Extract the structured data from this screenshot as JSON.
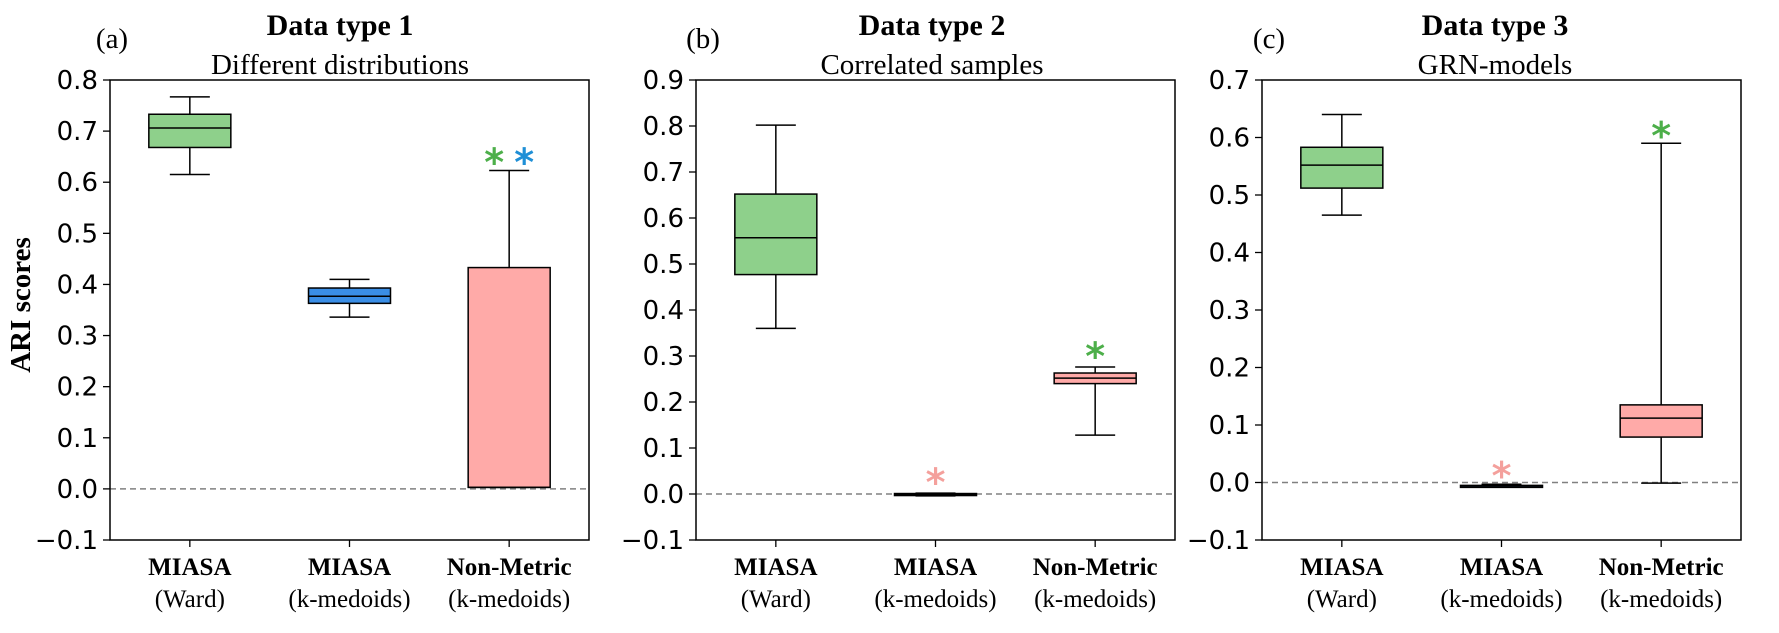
{
  "figure": {
    "ylabel": "ARI scores"
  },
  "colors": {
    "green_box": "#8ed08b",
    "blue_box": "#3a8ee6",
    "pink_box": "#ffaaa8",
    "green_star": "#4daf4a",
    "blue_star": "#1f8fd6",
    "pink_star": "#f4a09c",
    "zero_line": "#808080"
  },
  "chart_data": [
    {
      "type": "box",
      "panel_label": "(a)",
      "title": "Data type 1",
      "subtitle": "Different distributions",
      "ylabel": "ARI scores",
      "ylim": [
        -0.1,
        0.8
      ],
      "yticks": [
        "−0.1",
        "0.0",
        "0.1",
        "0.2",
        "0.3",
        "0.4",
        "0.5",
        "0.6",
        "0.7",
        "0.8"
      ],
      "zero_line": true,
      "categories": [
        {
          "line1": "MIASA",
          "line2": "(Ward)"
        },
        {
          "line1": "MIASA",
          "line2": "(k-medoids)"
        },
        {
          "line1": "Non-Metric",
          "line2": "(k-medoids)"
        }
      ],
      "boxes": [
        {
          "whislo": 0.615,
          "q1": 0.668,
          "med": 0.706,
          "q3": 0.733,
          "whishi": 0.767,
          "color": "green"
        },
        {
          "whislo": 0.336,
          "q1": 0.363,
          "med": 0.377,
          "q3": 0.393,
          "whishi": 0.41,
          "color": "blue"
        },
        {
          "whislo": 0.003,
          "q1": 0.003,
          "med": 0.003,
          "q3": 0.433,
          "whishi": 0.623,
          "color": "pink"
        }
      ],
      "markers": [
        {
          "box": 2,
          "y": 0.648,
          "symbol": "*",
          "color": "green",
          "offset": -1
        },
        {
          "box": 2,
          "y": 0.648,
          "symbol": "*",
          "color": "blue",
          "offset": 1
        }
      ]
    },
    {
      "type": "box",
      "panel_label": "(b)",
      "title": "Data type 2",
      "subtitle": "Correlated samples",
      "ylim": [
        -0.1,
        0.9
      ],
      "yticks": [
        "−0.1",
        "0.0",
        "0.1",
        "0.2",
        "0.3",
        "0.4",
        "0.5",
        "0.6",
        "0.7",
        "0.8",
        "0.9"
      ],
      "zero_line": true,
      "categories": [
        {
          "line1": "MIASA",
          "line2": "(Ward)"
        },
        {
          "line1": "MIASA",
          "line2": "(k-medoids)"
        },
        {
          "line1": "Non-Metric",
          "line2": "(k-medoids)"
        }
      ],
      "boxes": [
        {
          "whislo": 0.36,
          "q1": 0.477,
          "med": 0.557,
          "q3": 0.652,
          "whishi": 0.802,
          "color": "green"
        },
        {
          "whislo": -0.004,
          "q1": -0.003,
          "med": -0.001,
          "q3": 0.001,
          "whishi": 0.002,
          "color": "blue"
        },
        {
          "whislo": 0.128,
          "q1": 0.24,
          "med": 0.252,
          "q3": 0.263,
          "whishi": 0.276,
          "color": "pink"
        }
      ],
      "markers": [
        {
          "box": 1,
          "y": 0.036,
          "symbol": "*",
          "color": "pink",
          "offset": 0
        },
        {
          "box": 2,
          "y": 0.31,
          "symbol": "*",
          "color": "green",
          "offset": 0
        }
      ]
    },
    {
      "type": "box",
      "panel_label": "(c)",
      "title": "Data type 3",
      "subtitle": "GRN-models",
      "ylim": [
        -0.1,
        0.7
      ],
      "yticks": [
        "−0.1",
        "0.0",
        "0.1",
        "0.2",
        "0.3",
        "0.4",
        "0.5",
        "0.6",
        "0.7"
      ],
      "zero_line": true,
      "categories": [
        {
          "line1": "MIASA",
          "line2": "(Ward)"
        },
        {
          "line1": "MIASA",
          "line2": "(k-medoids)"
        },
        {
          "line1": "Non-Metric",
          "line2": "(k-medoids)"
        }
      ],
      "boxes": [
        {
          "whislo": 0.465,
          "q1": 0.512,
          "med": 0.552,
          "q3": 0.583,
          "whishi": 0.64,
          "color": "green"
        },
        {
          "whislo": -0.008,
          "q1": -0.007,
          "med": -0.006,
          "q3": -0.005,
          "whishi": -0.003,
          "color": "blue"
        },
        {
          "whislo": -0.001,
          "q1": 0.079,
          "med": 0.112,
          "q3": 0.135,
          "whishi": 0.59,
          "color": "pink"
        }
      ],
      "markers": [
        {
          "box": 1,
          "y": 0.02,
          "symbol": "*",
          "color": "pink",
          "offset": 0
        },
        {
          "box": 2,
          "y": 0.611,
          "symbol": "*",
          "color": "green",
          "offset": 0
        }
      ]
    }
  ]
}
